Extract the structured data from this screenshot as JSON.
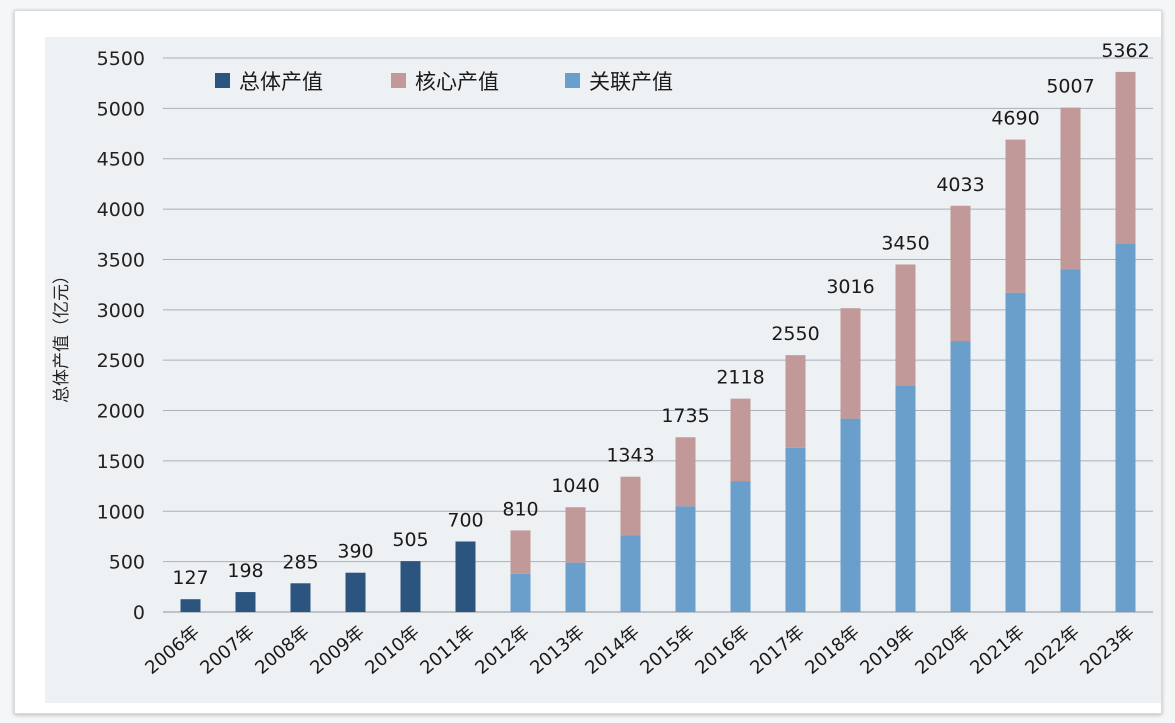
{
  "chart_data": {
    "type": "bar",
    "stacked": true,
    "ylabel": "总体产值（亿元）",
    "ylim": [
      0,
      5500
    ],
    "yticks": [
      0,
      500,
      1000,
      1500,
      2000,
      2500,
      3000,
      3500,
      4000,
      4500,
      5000,
      5500
    ],
    "grid": true,
    "legend_position": "top-left",
    "categories": [
      "2006年",
      "2007年",
      "2008年",
      "2009年",
      "2010年",
      "2011年",
      "2012年",
      "2013年",
      "2014年",
      "2015年",
      "2016年",
      "2017年",
      "2018年",
      "2019年",
      "2020年",
      "2021年",
      "2022年",
      "2023年"
    ],
    "series": [
      {
        "name": "总体产值",
        "color": "#2b557f",
        "values": [
          127,
          198,
          285,
          390,
          505,
          700,
          null,
          null,
          null,
          null,
          null,
          null,
          null,
          null,
          null,
          null,
          null,
          null
        ]
      },
      {
        "name": "关联产值",
        "color": "#6a9ecb",
        "values": [
          null,
          null,
          null,
          null,
          null,
          null,
          380,
          490,
          760,
          1050,
          1300,
          1630,
          1920,
          2250,
          2690,
          3170,
          3400,
          3660
        ]
      },
      {
        "name": "核心产值",
        "color": "#c19998",
        "values": [
          null,
          null,
          null,
          null,
          null,
          null,
          430,
          550,
          583,
          685,
          818,
          920,
          1096,
          1200,
          1343,
          1520,
          1607,
          1702
        ]
      }
    ],
    "legend_order": [
      "总体产值",
      "核心产值",
      "关联产值"
    ],
    "totals": [
      127,
      198,
      285,
      390,
      505,
      700,
      810,
      1040,
      1343,
      1735,
      2118,
      2550,
      3016,
      3450,
      4033,
      4690,
      5007,
      5362
    ]
  }
}
